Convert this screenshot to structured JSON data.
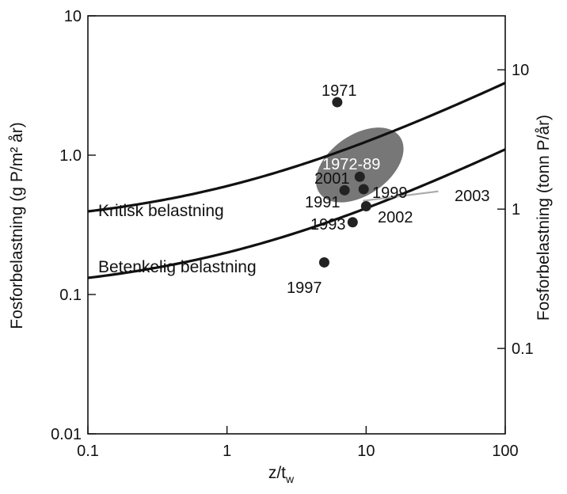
{
  "chart_data": {
    "type": "scatter",
    "x_axis": {
      "label_main": "z/t",
      "label_sub": "w",
      "scale": "log",
      "range": [
        0.1,
        100
      ],
      "ticks": [
        0.1,
        1,
        10,
        100
      ],
      "tick_labels": [
        "0.1",
        "1",
        "10",
        "100"
      ]
    },
    "y_axis_left": {
      "label": "Fosforbelastning (g P/m² år)",
      "scale": "log",
      "range": [
        0.01,
        10
      ],
      "ticks": [
        0.01,
        0.1,
        1,
        10
      ],
      "tick_labels": [
        "0.01",
        "0.1",
        "1.0",
        "10"
      ]
    },
    "y_axis_right": {
      "label": "Fosforbelastning (tonn P/år)",
      "scale": "log",
      "ticks": [
        0.1,
        1,
        10
      ],
      "tick_labels": [
        "0.1",
        "1",
        "10"
      ],
      "left_equivalent": [
        0.041,
        0.41,
        4.1
      ]
    },
    "curves": [
      {
        "name": "Kritisk belastning",
        "function": "0.3 * (1 + sqrt(x))",
        "color": "#111111"
      },
      {
        "name": "Betenkelig belastning",
        "function": "0.1 * (1 + sqrt(x))",
        "color": "#111111"
      }
    ],
    "points": [
      {
        "label": "1971",
        "x": 6.2,
        "y": 2.4
      },
      {
        "label": "2001",
        "x": 9.0,
        "y": 0.7
      },
      {
        "label": "1991",
        "x": 7.0,
        "y": 0.56
      },
      {
        "label": "1999",
        "x": 9.6,
        "y": 0.57
      },
      {
        "label": "2002",
        "x": 10.0,
        "y": 0.43
      },
      {
        "label": "1993",
        "x": 8.0,
        "y": 0.33
      },
      {
        "label": "1997",
        "x": 5.0,
        "y": 0.17
      },
      {
        "label": "2003",
        "x": null,
        "y": null
      }
    ],
    "region": {
      "label": "1972-89",
      "center_x": 9.0,
      "center_y": 0.85,
      "color": "#777777"
    },
    "arrow": {
      "label": "2003",
      "from_x": 9.5,
      "from_y": 0.47,
      "to_x": 33.0,
      "to_y": 0.55,
      "color": "#aaaaaa"
    },
    "grid": false,
    "legend": "none"
  }
}
